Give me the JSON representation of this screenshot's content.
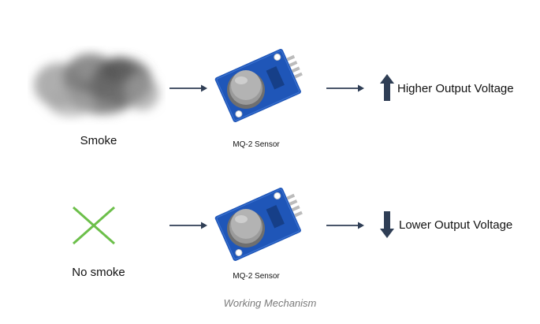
{
  "rows": [
    {
      "input_label": "Smoke",
      "input_icon": "smoke-cloud-icon",
      "sensor_label": "MQ-2 Sensor",
      "output_label": "Higher Output Voltage",
      "output_icon": "arrow-up-icon"
    },
    {
      "input_label": "No smoke",
      "input_icon": "cross-icon",
      "sensor_label": "MQ-2 Sensor",
      "output_label": "Lower Output Voltage",
      "output_icon": "arrow-down-icon"
    }
  ],
  "caption": "Working Mechanism",
  "colors": {
    "arrow": "#2f3e55",
    "pcb": "#1f56b8",
    "sensor_metal": "#8a8a8a",
    "cross": "#6cbf4a",
    "caption": "#7a7a7a"
  }
}
